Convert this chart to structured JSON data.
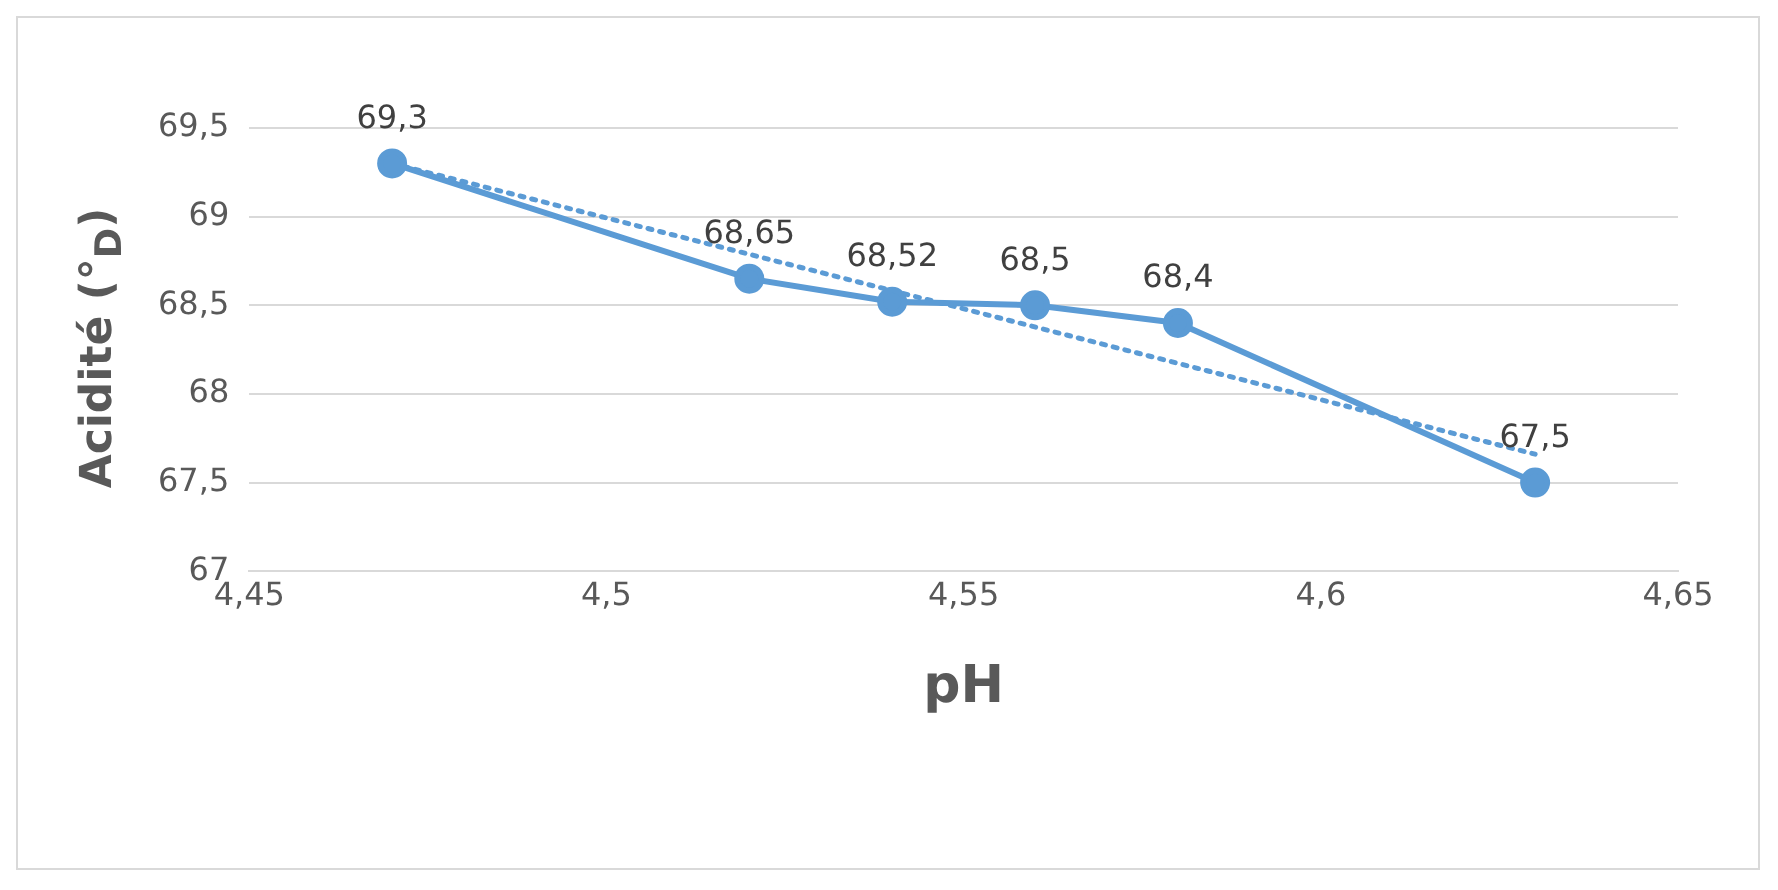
{
  "chart_data": {
    "type": "line",
    "xlabel": "pH",
    "ylabel": "Acidité (°$_{D}$)",
    "x": [
      4.47,
      4.52,
      4.54,
      4.56,
      4.58,
      4.63
    ],
    "series": [
      {
        "color": "#5b9bd5",
        "values": [
          69.3,
          68.65,
          68.52,
          68.5,
          68.4,
          67.5
        ],
        "value_labels": [
          "69,3",
          "68,65",
          "68,52",
          "68,5",
          "68,4",
          "67,5"
        ],
        "marker": "circle",
        "line_style": "solid"
      },
      {
        "type": "line",
        "color": "#5b9bd5",
        "x": [
          4.47,
          4.63
        ],
        "values": [
          69.3,
          67.66
        ],
        "marker": "none",
        "line_style": "dotted"
      }
    ],
    "xlim": [
      4.45,
      4.65
    ],
    "xticks": [
      {
        "value": 4.45,
        "label": "4,45"
      },
      {
        "value": 4.5,
        "label": "4,5"
      },
      {
        "value": 4.55,
        "label": "4,55"
      },
      {
        "value": 4.6,
        "label": "4,6"
      },
      {
        "value": 4.65,
        "label": "4,65"
      }
    ],
    "ylim": [
      67,
      69.5
    ],
    "yticks": [
      {
        "value": 67,
        "label": "67"
      },
      {
        "value": 67.5,
        "label": "67,5"
      },
      {
        "value": 68,
        "label": "68"
      },
      {
        "value": 68.5,
        "label": "68,5"
      },
      {
        "value": 69,
        "label": "69"
      },
      {
        "value": 69.5,
        "label": "69,5"
      }
    ],
    "grid": "y",
    "legend": false
  }
}
